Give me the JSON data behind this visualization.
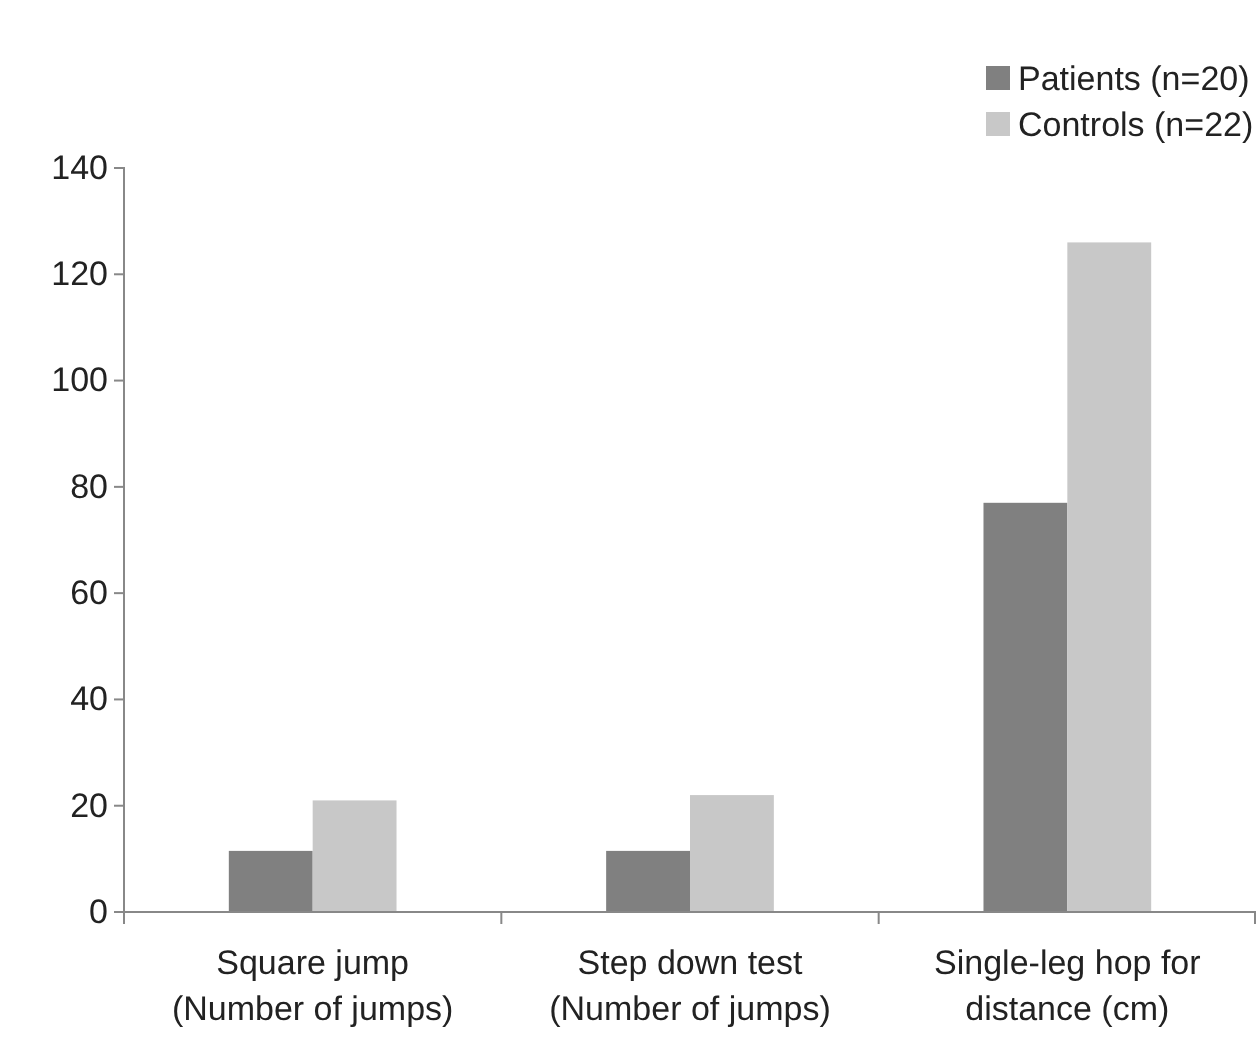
{
  "chart_data": {
    "type": "bar",
    "categories": [
      "Square jump\n(Number of jumps)",
      "Step down test\n(Number of jumps)",
      "Single-leg hop for\ndistance (cm)"
    ],
    "series": [
      {
        "name": "Patients (n=20)",
        "color": "#808080",
        "values": [
          11.5,
          11.5,
          77
        ]
      },
      {
        "name": "Controls (n=22)",
        "color": "#c8c8c8",
        "values": [
          21,
          22,
          126
        ]
      }
    ],
    "ylim": [
      0,
      140
    ],
    "yticks": [
      0,
      20,
      40,
      60,
      80,
      100,
      120,
      140
    ],
    "grid": false,
    "legend": "top right"
  }
}
